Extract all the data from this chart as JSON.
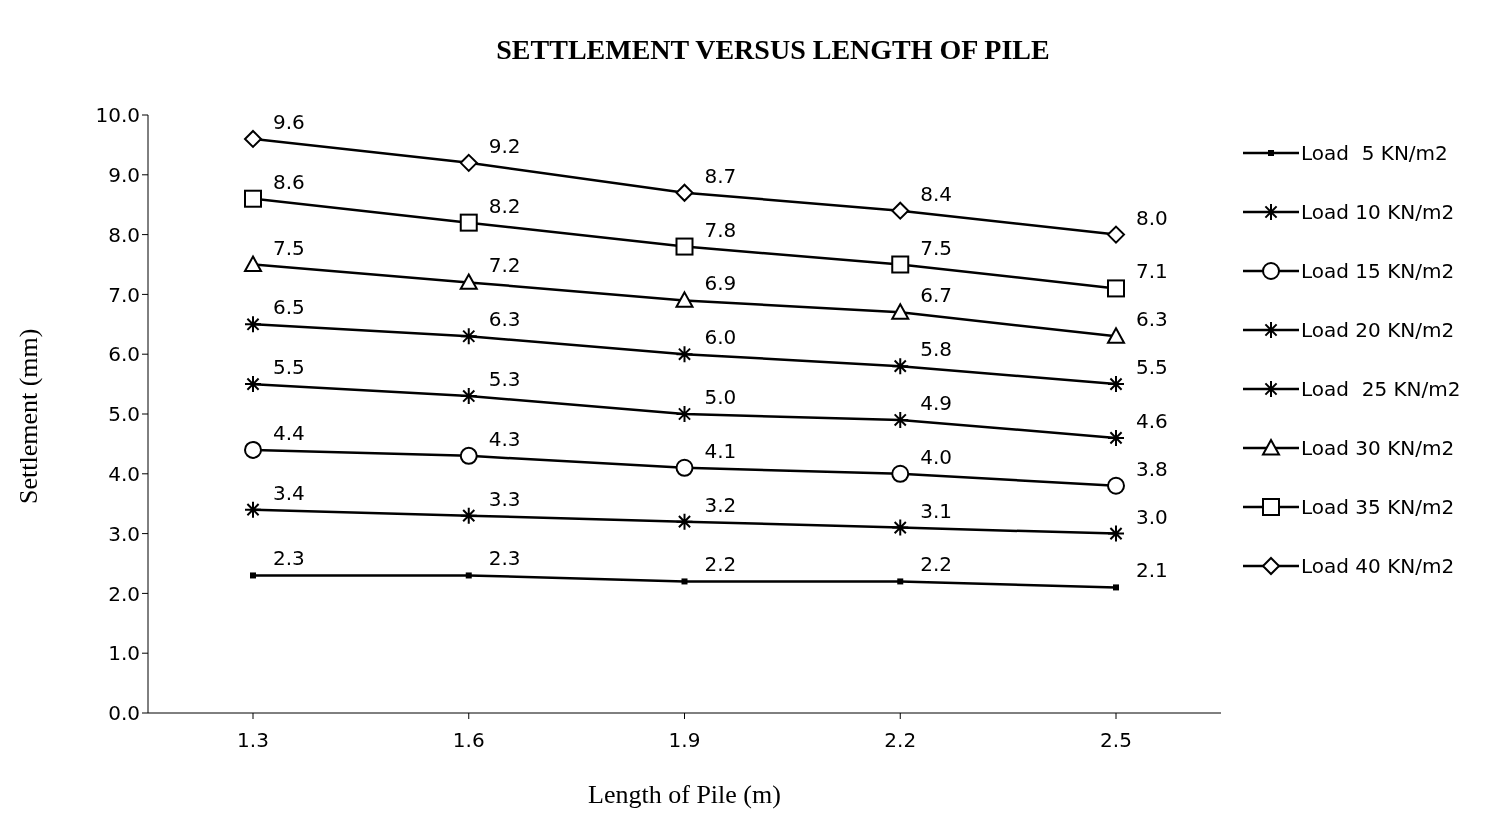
{
  "chart_data": {
    "type": "line",
    "title": "SETTLEMENT VERSUS LENGTH OF PILE",
    "xlabel": "Length of Pile (m)",
    "ylabel": "Settlement (mm)",
    "categories": [
      "1.3",
      "1.6",
      "1.9",
      "2.2",
      "2.5"
    ],
    "ylim": [
      0,
      10
    ],
    "yticks": [
      {
        "value": 0,
        "label": "0.0"
      },
      {
        "value": 1,
        "label": "1.0"
      },
      {
        "value": 2,
        "label": "2.0"
      },
      {
        "value": 3,
        "label": "3.0"
      },
      {
        "value": 4,
        "label": "4.0"
      },
      {
        "value": 5,
        "label": "5.0"
      },
      {
        "value": 6,
        "label": "6.0"
      },
      {
        "value": 7,
        "label": "7.0"
      },
      {
        "value": 8,
        "label": "8.0"
      },
      {
        "value": 9,
        "label": "9.0"
      },
      {
        "value": 10,
        "label": "10.0"
      }
    ],
    "grid": false,
    "legend": "right",
    "line_style": "solid",
    "series": [
      {
        "name": "Load  5 KN/m2",
        "color": "#000000",
        "marker": "square",
        "values": [
          2.3,
          2.3,
          2.2,
          2.2,
          2.1
        ],
        "value_labels": [
          "2.3",
          "2.3",
          "2.2",
          "2.2",
          "2.1"
        ]
      },
      {
        "name": "Load 10 KN/m2",
        "color": "#000000",
        "marker": "cross",
        "values": [
          3.4,
          3.3,
          3.2,
          3.1,
          3.0
        ],
        "value_labels": [
          "3.4",
          "3.3",
          "3.2",
          "3.1",
          "3.0"
        ]
      },
      {
        "name": "Load 15 KN/m2",
        "color": "#000000",
        "marker": "circle",
        "values": [
          4.4,
          4.3,
          4.1,
          4.0,
          3.8
        ],
        "value_labels": [
          "4.4",
          "4.3",
          "4.1",
          "4.0",
          "3.8"
        ]
      },
      {
        "name": "Load 20 KN/m2",
        "color": "#000000",
        "marker": "cross",
        "values": [
          5.5,
          5.3,
          5.0,
          4.9,
          4.6
        ],
        "value_labels": [
          "5.5",
          "5.3",
          "5.0",
          "4.9",
          "4.6"
        ]
      },
      {
        "name": "Load  25 KN/m2",
        "color": "#000000",
        "marker": "cross",
        "values": [
          6.5,
          6.3,
          6.0,
          5.8,
          5.5
        ],
        "value_labels": [
          "6.5",
          "6.3",
          "6.0",
          "5.8",
          "5.5"
        ]
      },
      {
        "name": "Load 30 KN/m2",
        "color": "#000000",
        "marker": "triangle",
        "values": [
          7.5,
          7.2,
          6.9,
          6.7,
          6.3
        ],
        "value_labels": [
          "7.5",
          "7.2",
          "6.9",
          "6.7",
          "6.3"
        ]
      },
      {
        "name": "Load 35 KN/m2",
        "color": "#000000",
        "marker": "square",
        "values": [
          8.6,
          8.2,
          7.8,
          7.5,
          7.1
        ],
        "value_labels": [
          "8.6",
          "8.2",
          "7.8",
          "7.5",
          "7.1"
        ]
      },
      {
        "name": "Load 40 KN/m2",
        "color": "#000000",
        "marker": "diamond",
        "values": [
          9.6,
          9.2,
          8.7,
          8.4,
          8.0
        ],
        "value_labels": [
          "9.6",
          "9.2",
          "8.7",
          "8.4",
          "8.0"
        ]
      }
    ]
  }
}
